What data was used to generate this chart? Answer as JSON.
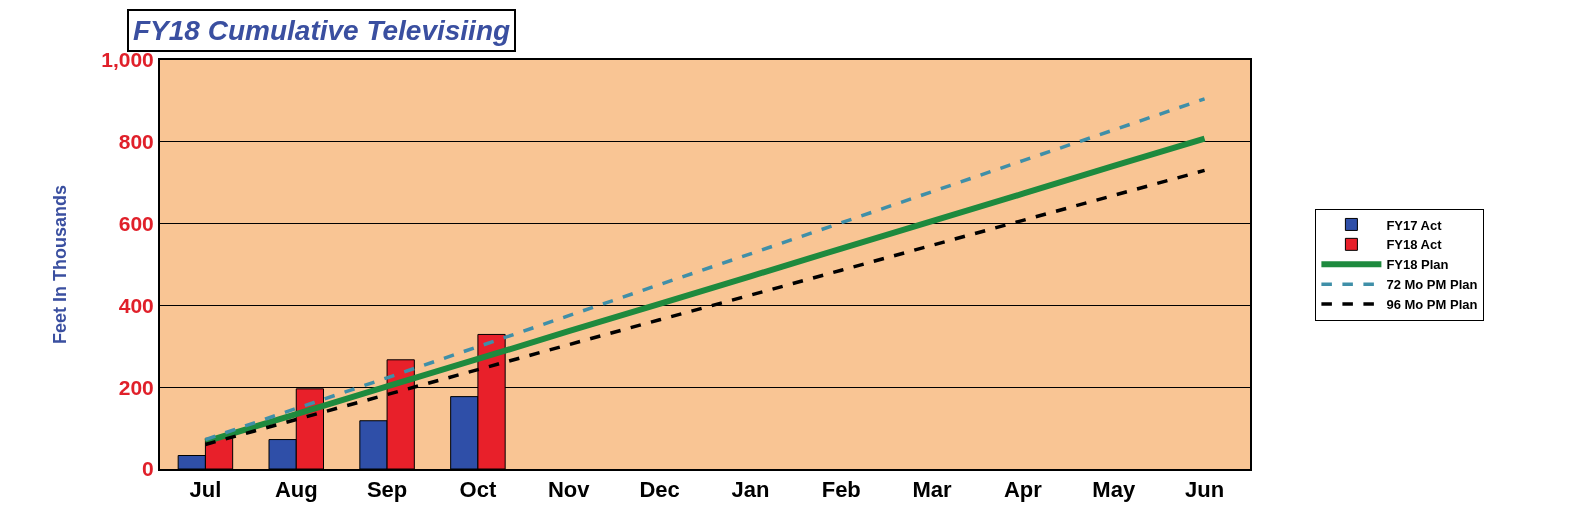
{
  "chart_data": {
    "type": "bar",
    "title": "FY18 Cumulative Televisiing",
    "ylabel": "Feet In Thousands",
    "categories": [
      "Jul",
      "Aug",
      "Sep",
      "Oct",
      "Nov",
      "Dec",
      "Jan",
      "Feb",
      "Mar",
      "Apr",
      "May",
      "Jun"
    ],
    "series": [
      {
        "name": "FY17 Act",
        "color": "#2f4fa8",
        "values": [
          33,
          72,
          118,
          177,
          null,
          null,
          null,
          null,
          null,
          null,
          null,
          null
        ]
      },
      {
        "name": "FY18 Act",
        "color": "#e8202a",
        "values": [
          75,
          196,
          267,
          329,
          null,
          null,
          null,
          null,
          null,
          null,
          null,
          null
        ]
      },
      {
        "name": "FY18 Plan",
        "type": "line",
        "color": "#1e8a3e",
        "line_style": "solid",
        "values": [
          67,
          134,
          202,
          269,
          337,
          404,
          471,
          539,
          606,
          673,
          741,
          808
        ]
      },
      {
        "name": "72 Mo PM Plan",
        "type": "line",
        "color": "#3f8fa8",
        "line_style": "dashed",
        "values": [
          72,
          148,
          223,
          299,
          375,
          451,
          526,
          602,
          678,
          754,
          829,
          905
        ]
      },
      {
        "name": "96 Mo PM Plan",
        "type": "line",
        "color": "#000000",
        "line_style": "dashed",
        "values": [
          60,
          121,
          182,
          243,
          304,
          365,
          425,
          486,
          547,
          608,
          669,
          730
        ]
      }
    ],
    "ylim": [
      0,
      1000
    ],
    "yticks": [
      0,
      200,
      400,
      600,
      800,
      {
        "value": 1000,
        "label": "1,000"
      }
    ],
    "grid": "y",
    "legend": "right",
    "marker": "none"
  }
}
